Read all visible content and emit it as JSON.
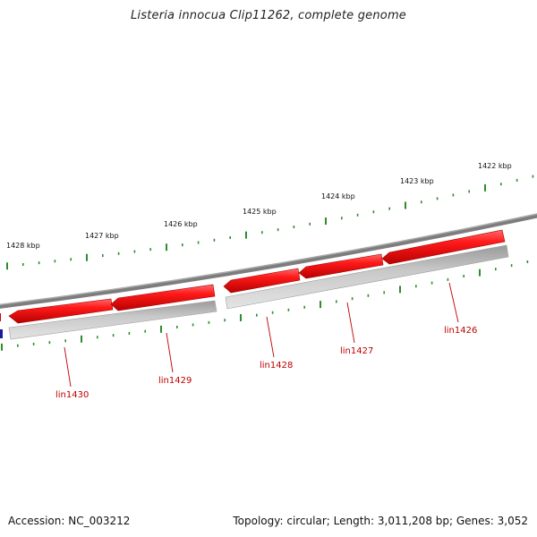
{
  "title": "Listeria innocua Clip11262, complete genome",
  "footer": {
    "accession": "Accession: NC_003212",
    "summary": "Topology: circular; Length: 3,011,208 bp; Genes: 3,052"
  },
  "colors": {
    "gene_forward": "#e00000",
    "gene_shadow": "#b9b9b9",
    "backbone": "#8a8a8a",
    "tick": "#2e8b2e",
    "label": "#c00000",
    "partial_gene": "#1a1aa0"
  },
  "kbp_labels": [
    "1428 kbp",
    "1427 kbp",
    "1426 kbp",
    "1425 kbp",
    "1424 kbp",
    "1423 kbp",
    "1422 kbp"
  ],
  "genes": [
    "lin1430",
    "lin1429",
    "lin1428",
    "lin1427",
    "lin1426"
  ]
}
